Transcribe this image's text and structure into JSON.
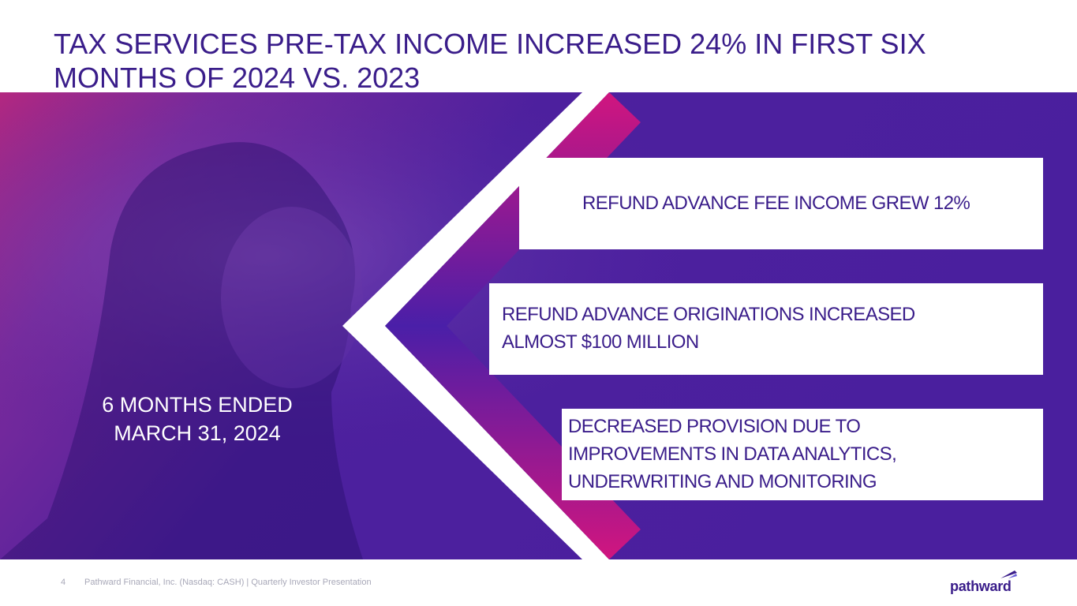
{
  "slide": {
    "title": "TAX SERVICES PRE-TAX INCOME INCREASED 24% IN FIRST SIX\nMONTHS OF 2024 VS. 2023",
    "period": "6 MONTHS ENDED\nMARCH 31, 2024",
    "highlights": [
      {
        "text": "REFUND ADVANCE FEE INCOME GREW 12%"
      },
      {
        "text": "REFUND ADVANCE ORIGINATIONS INCREASED\nALMOST $100 MILLION"
      },
      {
        "text": "DECREASED PROVISION DUE TO\n   IMPROVEMENTS IN DATA ANALYTICS,\n      UNDERWRITING AND MONITORING"
      }
    ]
  },
  "footer": {
    "page_number": "4",
    "text": "Pathward Financial, Inc. (Nasdaq: CASH) | Quarterly Investor Presentation"
  },
  "brand": {
    "logo_text": "pathward",
    "colors": {
      "primary": "#3a1d8a",
      "banner": "#4a1f9e",
      "magenta": "#d1157f",
      "footer_text": "#a8a8b8"
    }
  }
}
